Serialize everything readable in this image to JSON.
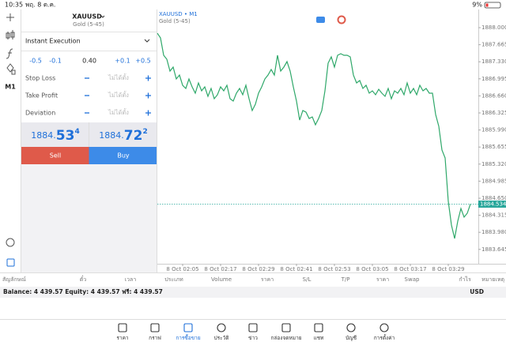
{
  "status_bar": {
    "time": "10:35",
    "date": "พฤ. 8 ต.ค.",
    "battery": "9%"
  },
  "toolbar": {
    "timeframe": "M1"
  },
  "order_panel": {
    "symbol": "XAUUSD",
    "description": "Gold (5-45)",
    "execution": "Instant Execution",
    "volume_steps": [
      "-0.5",
      "-0.1",
      "+0.1",
      "+0.5"
    ],
    "volume": "0.40",
    "fields": [
      {
        "label": "Stop Loss",
        "value": "ไม่ได้ตั้ง"
      },
      {
        "label": "Take Profit",
        "value": "ไม่ได้ตั้ง"
      },
      {
        "label": "Deviation",
        "value": "ไม่ได้ตั้ง"
      }
    ],
    "bid": {
      "main": "1884.",
      "big": "53",
      "sup": "4"
    },
    "ask": {
      "main": "1884.",
      "big": "72",
      "sup": "2"
    },
    "sell": "Sell",
    "buy": "Buy"
  },
  "chart_data": {
    "type": "line",
    "title": "XAUUSD • M1",
    "subtitle": "Gold (5-45)",
    "color": "#2fa86a",
    "x": [
      117,
      118,
      119,
      120,
      121,
      122,
      123,
      124,
      125,
      126,
      127,
      128,
      129,
      130,
      131,
      132,
      133,
      134,
      135,
      136,
      137,
      138,
      139,
      140,
      141,
      142,
      143,
      144,
      145,
      146,
      147,
      148,
      149,
      150,
      151,
      152,
      153,
      154,
      155,
      156,
      157,
      158,
      159,
      160,
      161,
      162,
      163,
      164,
      165,
      166,
      167,
      168,
      169,
      170,
      171,
      172,
      173,
      174,
      175,
      176,
      177,
      178,
      179,
      180,
      181,
      182,
      183,
      184,
      185,
      186,
      187,
      188,
      189,
      190,
      191,
      192,
      193,
      194,
      195,
      196,
      197,
      198,
      199,
      200,
      201,
      202,
      203,
      204,
      205,
      206,
      207,
      208,
      209,
      210,
      211,
      212,
      213,
      214,
      215,
      216
    ],
    "values": [
      1887.891,
      1887.798,
      1887.457,
      1887.38,
      1887.147,
      1887.225,
      1886.992,
      1887.069,
      1886.868,
      1886.806,
      1886.992,
      1886.837,
      1886.713,
      1886.914,
      1886.759,
      1886.837,
      1886.651,
      1886.806,
      1886.604,
      1886.682,
      1886.837,
      1886.759,
      1886.868,
      1886.604,
      1886.558,
      1886.713,
      1886.806,
      1886.682,
      1886.868,
      1886.604,
      1886.372,
      1886.496,
      1886.713,
      1886.837,
      1886.992,
      1887.069,
      1887.178,
      1887.069,
      1887.457,
      1887.147,
      1887.225,
      1887.333,
      1887.147,
      1886.837,
      1886.558,
      1886.185,
      1886.372,
      1886.341,
      1886.216,
      1886.247,
      1886.092,
      1886.216,
      1886.372,
      1886.759,
      1887.302,
      1887.426,
      1887.225,
      1887.457,
      1887.488,
      1887.457,
      1887.457,
      1887.426,
      1887.069,
      1886.914,
      1886.961,
      1886.806,
      1886.868,
      1886.713,
      1886.759,
      1886.682,
      1886.79,
      1886.713,
      1886.651,
      1886.806,
      1886.604,
      1886.759,
      1886.713,
      1886.806,
      1886.682,
      1886.914,
      1886.713,
      1886.806,
      1886.682,
      1886.868,
      1886.759,
      1886.806,
      1886.713,
      1886.713,
      1886.294,
      1886.062,
      1885.596,
      1885.441,
      1884.588,
      1884.123,
      1883.859,
      1884.2,
      1884.448,
      1884.278,
      1884.355,
      1884.534
    ],
    "xlim": [
      117,
      218.5
    ],
    "xticks": [
      {
        "value": 125,
        "label": "8 Oct 02:05"
      },
      {
        "value": 137,
        "label": "8 Oct 02:17"
      },
      {
        "value": 149,
        "label": "8 Oct 02:29"
      },
      {
        "value": 161,
        "label": "8 Oct 02:41"
      },
      {
        "value": 173,
        "label": "8 Oct 02:53"
      },
      {
        "value": 185,
        "label": "8 Oct 03:05"
      },
      {
        "value": 197,
        "label": "8 Oct 03:17"
      },
      {
        "value": 209,
        "label": "8 Oct 03:29"
      }
    ],
    "ylim": [
      1883.502,
      1888.357
    ],
    "yticks": [
      {
        "value": 1888,
        "label": "1888.000"
      },
      1887.665,
      {
        "value": 1887.33,
        "label": "1887.330"
      },
      1886.995,
      {
        "value": 1886.66,
        "label": "1886.660"
      },
      1886.325,
      {
        "value": 1885.99,
        "label": "1885.990"
      },
      1885.655,
      {
        "value": 1885.32,
        "label": "1885.320"
      },
      1884.985,
      {
        "value": 1884.65,
        "label": "1884.650"
      },
      1884.315,
      {
        "value": 1883.98,
        "label": "1883.980"
      },
      1883.645
    ],
    "current_price": 1884.534,
    "current_price_color": "#26a69a"
  },
  "table_headers": [
    "สัญลักษณ์",
    "ตั๋ว",
    "เวลา",
    "ประเภท",
    "Volume",
    "ราคา",
    "S/L",
    "T/P",
    "ราคา",
    "Swap",
    "กำไร",
    "หมายเหตุ"
  ],
  "account": {
    "summary": "Balance: 4 439.57 Equity: 4 439.57 ฟรี: 4 439.57",
    "currency": "USD"
  },
  "tabs": [
    "ราคา",
    "กราฟ",
    "การซื้อขาย",
    "ประวัติ",
    "ข่าว",
    "กล่องจดหมาย",
    "แชท",
    "บัญชี",
    "การตั้งค่า"
  ]
}
